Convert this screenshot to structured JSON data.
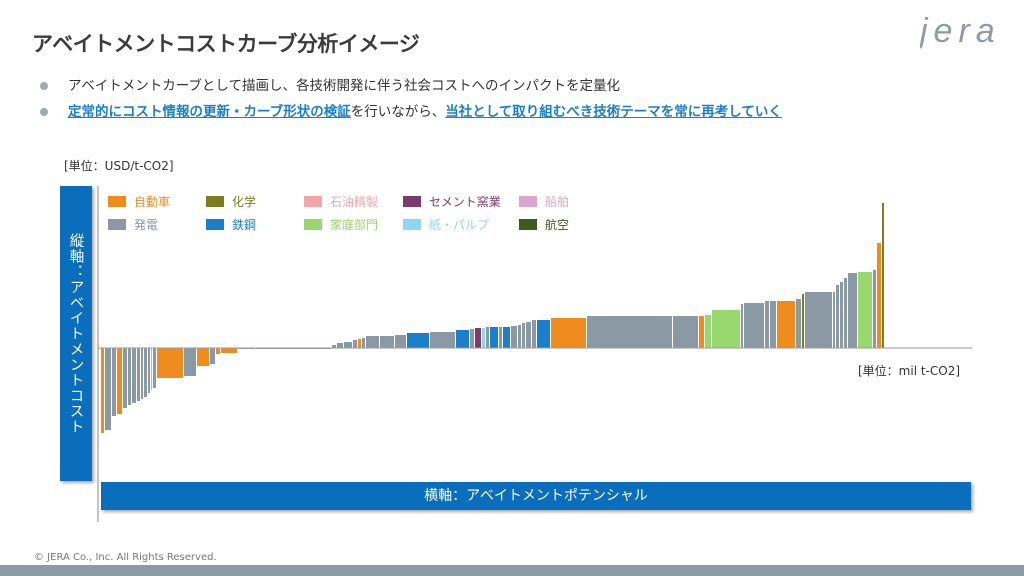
{
  "header": {
    "title": "アベイトメントコストカーブ分析イメージ",
    "logo_text": "JERA"
  },
  "bullets": {
    "b1": "アベイトメントカーブとして描画し、各技術開発に伴う社会コストへのインパクトを定量化",
    "b2_hl1": "定常的にコスト情報の更新・カーブ形状の検証",
    "b2_mid": "を行いながら、",
    "b2_hl2": "当社として取り組むべき技術テーマを常に再考していく"
  },
  "footer": "© JERA Co., Inc. All Rights Reserved.",
  "colors": {
    "accent_blue": "#0a6ebd",
    "bullet_dot": "#9aaab8",
    "highlight": "#1a7fd0"
  },
  "chart_data": {
    "type": "bar",
    "subtype": "marginal-abatement-cost-curve",
    "y_unit_label": "[単位：USD/t-CO2]",
    "x_unit_label": "[単位：mil t-CO2]",
    "ylabel": "縦軸：アベイトメントコスト",
    "xlabel": "横軸：アベイトメントポテンシャル",
    "legend": [
      {
        "name": "自動車",
        "color": "#f08c1e"
      },
      {
        "name": "化学",
        "color": "#7a7e1f"
      },
      {
        "name": "石油精製",
        "color": "#f2a6a8"
      },
      {
        "name": "セメント窯業",
        "color": "#7c3a6e"
      },
      {
        "name": "船舶",
        "color": "#dca6cf"
      },
      {
        "name": "発電",
        "color": "#8b99a5"
      },
      {
        "name": "鉄鋼",
        "color": "#1b7fc9"
      },
      {
        "name": "家庭部門",
        "color": "#98d86e"
      },
      {
        "name": "紙・パルプ",
        "color": "#8fd5f4"
      },
      {
        "name": "航空",
        "color": "#3e5a1e"
      }
    ],
    "bars": [
      {
        "s": "自動車",
        "w": 3,
        "v": -85
      },
      {
        "s": "発電",
        "w": 6,
        "v": -82
      },
      {
        "s": "発電",
        "w": 4,
        "v": -68
      },
      {
        "s": "自動車",
        "w": 5,
        "v": -66
      },
      {
        "s": "発電",
        "w": 4,
        "v": -60
      },
      {
        "s": "発電",
        "w": 3,
        "v": -57
      },
      {
        "s": "発電",
        "w": 4,
        "v": -55
      },
      {
        "s": "発電",
        "w": 3,
        "v": -53
      },
      {
        "s": "発電",
        "w": 2,
        "v": -51
      },
      {
        "s": "発電",
        "w": 3,
        "v": -49
      },
      {
        "s": "発電",
        "w": 2,
        "v": -45
      },
      {
        "s": "船舶",
        "w": 1,
        "v": -42
      },
      {
        "s": "発電",
        "w": 3,
        "v": -40
      },
      {
        "s": "自動車",
        "w": 26,
        "v": -30
      },
      {
        "s": "発電",
        "w": 12,
        "v": -28
      },
      {
        "s": "自動車",
        "w": 12,
        "v": -18
      },
      {
        "s": "発電",
        "w": 5,
        "v": -16
      },
      {
        "s": "自動車",
        "w": 4,
        "v": -6
      },
      {
        "s": "自動車",
        "w": 16,
        "v": -5
      },
      {
        "s": "発電",
        "w": 17,
        "v": -1
      },
      {
        "s": "発電",
        "w": 75,
        "v": 0
      },
      {
        "s": "発電",
        "w": 4,
        "v": 3
      },
      {
        "s": "発電",
        "w": 6,
        "v": 5
      },
      {
        "s": "発電",
        "w": 8,
        "v": 6
      },
      {
        "s": "発電",
        "w": 4,
        "v": 8
      },
      {
        "s": "自動車",
        "w": 3,
        "v": 9
      },
      {
        "s": "発電",
        "w": 3,
        "v": 10
      },
      {
        "s": "発電",
        "w": 13,
        "v": 12
      },
      {
        "s": "発電",
        "w": 14,
        "v": 12
      },
      {
        "s": "発電",
        "w": 11,
        "v": 13
      },
      {
        "s": "鉄鋼",
        "w": 22,
        "v": 15
      },
      {
        "s": "発電",
        "w": 25,
        "v": 16
      },
      {
        "s": "鉄鋼",
        "w": 13,
        "v": 18
      },
      {
        "s": "発電",
        "w": 4,
        "v": 19
      },
      {
        "s": "セメント窯業",
        "w": 6,
        "v": 20
      },
      {
        "s": "紙・パルプ",
        "w": 3,
        "v": 20
      },
      {
        "s": "発電",
        "w": 3,
        "v": 21
      },
      {
        "s": "鉄鋼",
        "w": 8,
        "v": 21
      },
      {
        "s": "発電",
        "w": 3,
        "v": 21
      },
      {
        "s": "鉄鋼",
        "w": 7,
        "v": 21
      },
      {
        "s": "発電",
        "w": 6,
        "v": 22
      },
      {
        "s": "発電",
        "w": 3,
        "v": 23
      },
      {
        "s": "発電",
        "w": 3,
        "v": 25
      },
      {
        "s": "発電",
        "w": 5,
        "v": 26
      },
      {
        "s": "発電",
        "w": 4,
        "v": 28
      },
      {
        "s": "鉄鋼",
        "w": 13,
        "v": 28
      },
      {
        "s": "自動車",
        "w": 35,
        "v": 30
      },
      {
        "s": "発電",
        "w": 85,
        "v": 32
      },
      {
        "s": "発電",
        "w": 25,
        "v": 32
      },
      {
        "s": "自動車",
        "w": 5,
        "v": 32
      },
      {
        "s": "家庭部門",
        "w": 6,
        "v": 33
      },
      {
        "s": "家庭部門",
        "w": 28,
        "v": 38
      },
      {
        "s": "発電",
        "w": 2,
        "v": 44
      },
      {
        "s": "発電",
        "w": 20,
        "v": 45
      },
      {
        "s": "発電",
        "w": 4,
        "v": 47
      },
      {
        "s": "発電",
        "w": 6,
        "v": 47
      },
      {
        "s": "自動車",
        "w": 18,
        "v": 47
      },
      {
        "s": "発電",
        "w": 5,
        "v": 49
      },
      {
        "s": "化学",
        "w": 2,
        "v": 54
      },
      {
        "s": "発電",
        "w": 27,
        "v": 56
      },
      {
        "s": "発電",
        "w": 2,
        "v": 56
      },
      {
        "s": "発電",
        "w": 3,
        "v": 63
      },
      {
        "s": "発電",
        "w": 3,
        "v": 66
      },
      {
        "s": "発電",
        "w": 3,
        "v": 70
      },
      {
        "s": "発電",
        "w": 9,
        "v": 75
      },
      {
        "s": "家庭部門",
        "w": 14,
        "v": 76
      },
      {
        "s": "発電",
        "w": 3,
        "v": 78
      },
      {
        "s": "自動車",
        "w": 4,
        "v": 105
      },
      {
        "s": "化学",
        "w": 2,
        "v": 145
      }
    ]
  }
}
